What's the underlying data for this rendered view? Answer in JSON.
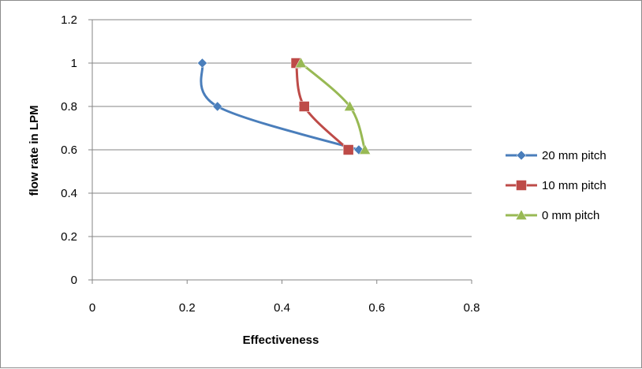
{
  "chart_data": {
    "type": "scatter",
    "title": "",
    "xlabel": "Effectiveness",
    "ylabel": "flow rate in LPM",
    "xlim": [
      0,
      0.8
    ],
    "ylim": [
      0,
      1.2
    ],
    "x_ticks": [
      "0",
      "0.2",
      "0.4",
      "0.6",
      "0.8"
    ],
    "y_ticks": [
      "0",
      "0.2",
      "0.4",
      "0.6",
      "0.8",
      "1",
      "1.2"
    ],
    "x_tick_values": [
      0,
      0.2,
      0.4,
      0.6,
      0.8
    ],
    "y_tick_values": [
      0,
      0.2,
      0.4,
      0.6,
      0.8,
      1.0,
      1.2
    ],
    "grid": "horizontal",
    "legend_position": "right",
    "series": [
      {
        "name": "20 mm pitch",
        "color": "#4a7ebb",
        "marker": "diamond",
        "x": [
          0.232,
          0.264,
          0.562
        ],
        "y": [
          1.0,
          0.8,
          0.6
        ]
      },
      {
        "name": "10 mm pitch",
        "color": "#be4b48",
        "marker": "square",
        "x": [
          0.43,
          0.447,
          0.54
        ],
        "y": [
          1.0,
          0.8,
          0.6
        ]
      },
      {
        "name": "0 mm pitch",
        "color": "#98b954",
        "marker": "triangle",
        "x": [
          0.44,
          0.543,
          0.575
        ],
        "y": [
          1.0,
          0.8,
          0.6
        ]
      }
    ]
  }
}
